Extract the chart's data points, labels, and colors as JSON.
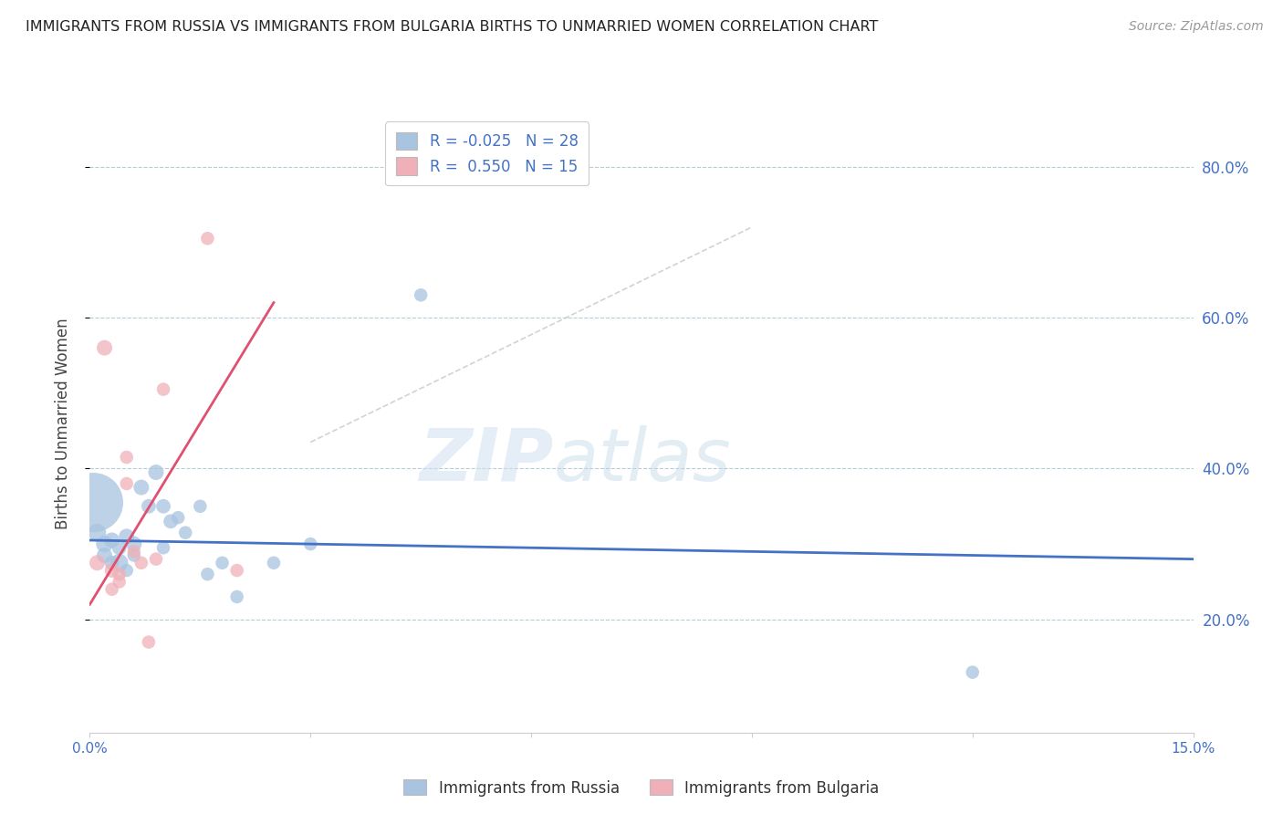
{
  "title": "IMMIGRANTS FROM RUSSIA VS IMMIGRANTS FROM BULGARIA BIRTHS TO UNMARRIED WOMEN CORRELATION CHART",
  "source": "Source: ZipAtlas.com",
  "ylabel_label": "Births to Unmarried Women",
  "x_min": 0.0,
  "x_max": 0.15,
  "y_min": 0.05,
  "y_max": 0.87,
  "x_ticks": [
    0.0,
    0.03,
    0.06,
    0.09,
    0.12,
    0.15
  ],
  "x_tick_labels": [
    "0.0%",
    "",
    "",
    "",
    "",
    "15.0%"
  ],
  "y_ticks": [
    0.2,
    0.4,
    0.6,
    0.8
  ],
  "y_tick_labels": [
    "20.0%",
    "40.0%",
    "60.0%",
    "80.0%"
  ],
  "russia_R": "-0.025",
  "russia_N": "28",
  "bulgaria_R": "0.550",
  "bulgaria_N": "15",
  "russia_color": "#a8c4e0",
  "bulgaria_color": "#f0b0b8",
  "russia_line_color": "#4472c4",
  "bulgaria_line_color": "#e05070",
  "watermark_zip": "ZIP",
  "watermark_atlas": "atlas",
  "russia_points": [
    [
      0.0005,
      0.355
    ],
    [
      0.001,
      0.315
    ],
    [
      0.002,
      0.3
    ],
    [
      0.002,
      0.285
    ],
    [
      0.003,
      0.305
    ],
    [
      0.003,
      0.275
    ],
    [
      0.004,
      0.295
    ],
    [
      0.004,
      0.275
    ],
    [
      0.005,
      0.31
    ],
    [
      0.005,
      0.265
    ],
    [
      0.006,
      0.3
    ],
    [
      0.006,
      0.285
    ],
    [
      0.007,
      0.375
    ],
    [
      0.008,
      0.35
    ],
    [
      0.009,
      0.395
    ],
    [
      0.01,
      0.35
    ],
    [
      0.01,
      0.295
    ],
    [
      0.011,
      0.33
    ],
    [
      0.012,
      0.335
    ],
    [
      0.013,
      0.315
    ],
    [
      0.015,
      0.35
    ],
    [
      0.016,
      0.26
    ],
    [
      0.018,
      0.275
    ],
    [
      0.02,
      0.23
    ],
    [
      0.025,
      0.275
    ],
    [
      0.03,
      0.3
    ],
    [
      0.045,
      0.63
    ],
    [
      0.12,
      0.13
    ]
  ],
  "russia_sizes": [
    2200,
    200,
    180,
    150,
    150,
    130,
    130,
    200,
    150,
    110,
    150,
    110,
    150,
    130,
    150,
    130,
    110,
    130,
    110,
    110,
    110,
    110,
    110,
    110,
    110,
    110,
    110,
    110
  ],
  "bulgaria_points": [
    [
      0.001,
      0.275
    ],
    [
      0.002,
      0.56
    ],
    [
      0.003,
      0.265
    ],
    [
      0.003,
      0.24
    ],
    [
      0.004,
      0.26
    ],
    [
      0.004,
      0.25
    ],
    [
      0.005,
      0.415
    ],
    [
      0.005,
      0.38
    ],
    [
      0.006,
      0.29
    ],
    [
      0.007,
      0.275
    ],
    [
      0.008,
      0.17
    ],
    [
      0.009,
      0.28
    ],
    [
      0.01,
      0.505
    ],
    [
      0.016,
      0.705
    ],
    [
      0.02,
      0.265
    ]
  ],
  "bulgaria_sizes": [
    150,
    150,
    130,
    110,
    110,
    110,
    110,
    110,
    110,
    110,
    110,
    110,
    110,
    110,
    110
  ],
  "russia_trend_x": [
    0.0,
    0.15
  ],
  "russia_trend_y": [
    0.305,
    0.28
  ],
  "bulgaria_trend_x": [
    0.0,
    0.025
  ],
  "bulgaria_trend_y": [
    0.22,
    0.62
  ],
  "dashed_line_x": [
    0.03,
    0.09
  ],
  "dashed_line_y": [
    0.435,
    0.72
  ]
}
